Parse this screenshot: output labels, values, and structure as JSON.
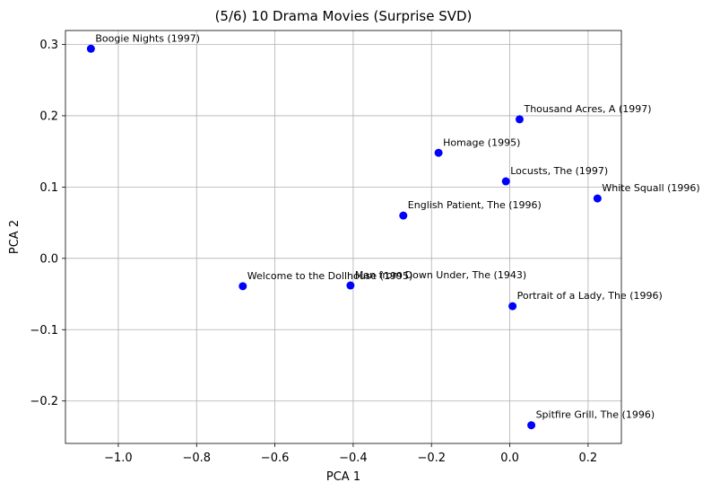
{
  "chart_data": {
    "type": "scatter",
    "title": "(5/6) 10 Drama Movies (Surprise SVD)",
    "xlabel": "PCA 1",
    "ylabel": "PCA 2",
    "xlim": [
      -1.135,
      0.285
    ],
    "ylim": [
      -0.2595,
      0.3195
    ],
    "xticks": [
      -1.0,
      -0.8,
      -0.6,
      -0.4,
      -0.2,
      0.0,
      0.2
    ],
    "xtick_labels": [
      "−1.0",
      "−0.8",
      "−0.6",
      "−0.4",
      "−0.2",
      "0.0",
      "0.2"
    ],
    "yticks": [
      -0.2,
      -0.1,
      0.0,
      0.1,
      0.2,
      0.3
    ],
    "ytick_labels": [
      "−0.2",
      "−0.1",
      "0.0",
      "0.1",
      "0.2",
      "0.3"
    ],
    "grid": true,
    "point_color": "#0000ff",
    "points": [
      {
        "label": "Boogie Nights (1997)",
        "x": -1.07,
        "y": 0.294
      },
      {
        "label": "Thousand Acres, A (1997)",
        "x": 0.025,
        "y": 0.195
      },
      {
        "label": "Homage (1995)",
        "x": -0.182,
        "y": 0.148
      },
      {
        "label": "Locusts, The (1997)",
        "x": -0.01,
        "y": 0.108
      },
      {
        "label": "White Squall (1996)",
        "x": 0.224,
        "y": 0.084
      },
      {
        "label": "English Patient, The (1996)",
        "x": -0.272,
        "y": 0.06
      },
      {
        "label": "Welcome to the Dollhouse (1995)",
        "x": -0.682,
        "y": -0.039
      },
      {
        "label": "Man from Down Under, The (1943)",
        "x": -0.407,
        "y": -0.038
      },
      {
        "label": "Portrait of a Lady, The (1996)",
        "x": 0.007,
        "y": -0.067
      },
      {
        "label": "Spitfire Grill, The (1996)",
        "x": 0.055,
        "y": -0.234
      }
    ]
  }
}
